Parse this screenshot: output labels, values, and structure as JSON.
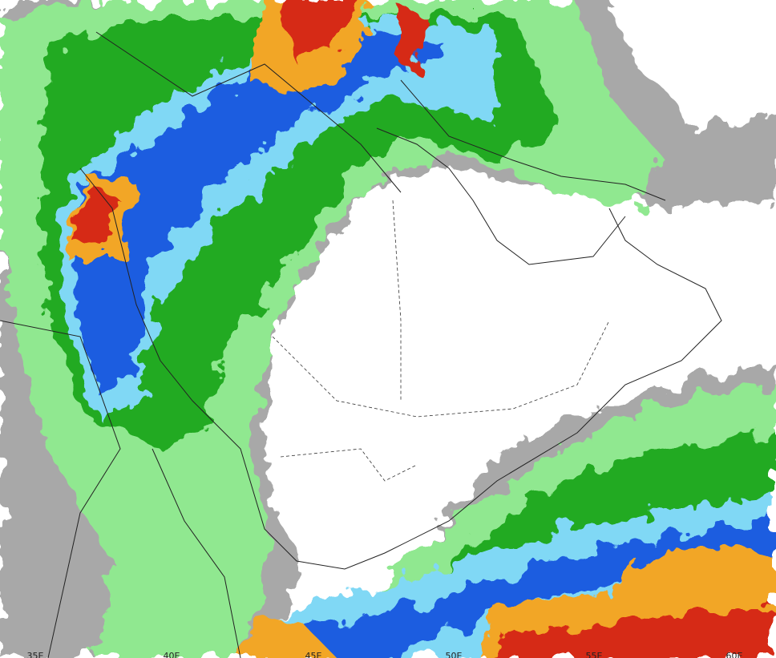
{
  "map": {
    "longitude_labels": [
      "35E",
      "40E",
      "45E",
      "50E",
      "55E",
      "60E"
    ]
  }
}
